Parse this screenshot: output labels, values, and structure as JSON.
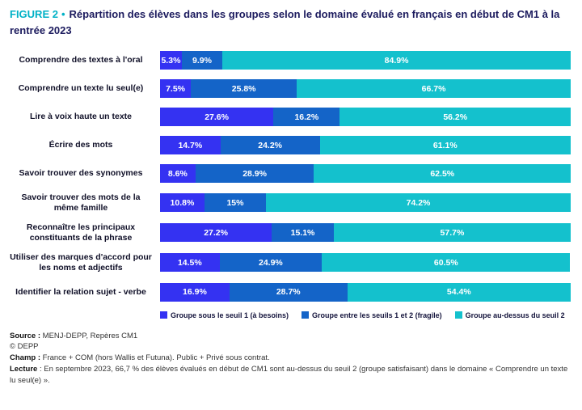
{
  "title": {
    "figure_label": "FIGURE 2",
    "bullet": "•",
    "text": "Répartition des élèves dans les groupes selon le domaine évalué en français en début de CM1 à la rentrée 2023"
  },
  "colors": {
    "accent_teal": "#00b1c6",
    "title_navy": "#1c1b5e",
    "seuil1_blue": "#3432f2",
    "seuil2_blue": "#1464c8",
    "above_seuil2_turquoise": "#14c1cd"
  },
  "chart_data": {
    "type": "bar",
    "orientation": "horizontal",
    "stacked": true,
    "title": "Répartition des élèves dans les groupes selon le domaine évalué en français en début de CM1 à la rentrée 2023",
    "xlabel": "",
    "ylabel": "",
    "xlim": [
      0,
      100
    ],
    "grid": false,
    "legend_position": "bottom",
    "categories": [
      "Comprendre des textes à l'oral",
      "Comprendre un texte lu seul(e)",
      "Lire à voix haute un texte",
      "Écrire des mots",
      "Savoir trouver des synonymes",
      "Savoir trouver des mots de la même famille",
      "Reconnaître les principaux constituants de la phrase",
      "Utiliser des marques d'accord pour les noms et adjectifs",
      "Identifier la relation sujet - verbe"
    ],
    "series": [
      {
        "name": "Groupe sous le seuil 1 (à besoins)",
        "color": "#3432f2",
        "values": [
          5.3,
          7.5,
          27.6,
          14.7,
          8.6,
          10.8,
          27.2,
          14.5,
          16.9
        ]
      },
      {
        "name": "Groupe entre les seuils 1 et 2 (fragile)",
        "color": "#1464c8",
        "values": [
          9.9,
          25.8,
          16.2,
          24.2,
          28.9,
          15,
          15.1,
          24.9,
          28.7
        ]
      },
      {
        "name": "Groupe au-dessus du seuil 2",
        "color": "#14c1cd",
        "values": [
          84.9,
          66.7,
          56.2,
          61.1,
          62.5,
          74.2,
          57.7,
          60.5,
          54.4
        ]
      }
    ],
    "value_labels": [
      [
        "5.3%",
        "9.9%",
        "84.9%"
      ],
      [
        "7.5%",
        "25.8%",
        "66.7%"
      ],
      [
        "27.6%",
        "16.2%",
        "56.2%"
      ],
      [
        "14.7%",
        "24.2%",
        "61.1%"
      ],
      [
        "8.6%",
        "28.9%",
        "62.5%"
      ],
      [
        "10.8%",
        "15%",
        "74.2%"
      ],
      [
        "27.2%",
        "15.1%",
        "57.7%"
      ],
      [
        "14.5%",
        "24.9%",
        "60.5%"
      ],
      [
        "16.9%",
        "28.7%",
        "54.4%"
      ]
    ]
  },
  "footer": {
    "source_label": "Source :",
    "source_text": " MENJ-DEPP, Repères CM1",
    "copyright": "© DEPP",
    "champ_label": "Champ :",
    "champ_text": " France + COM (hors Wallis et Futuna). Public + Privé sous contrat.",
    "lecture_label": "Lecture",
    "lecture_text": " : En septembre 2023, 66,7 % des élèves évalués en début de CM1 sont au-dessus du seuil 2 (groupe satisfaisant) dans le domaine «  Comprendre un texte lu seul(e) »."
  }
}
